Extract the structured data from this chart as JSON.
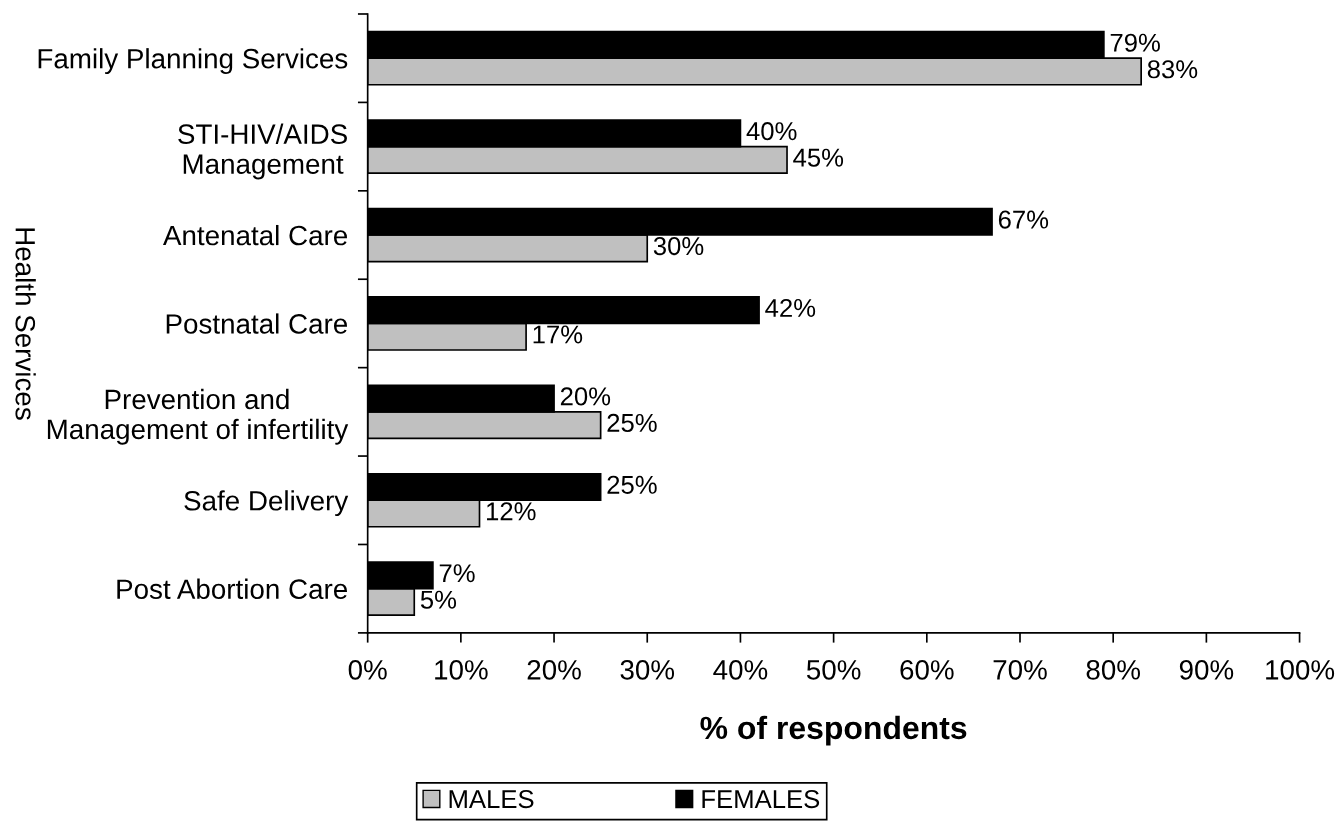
{
  "chart_data": {
    "type": "bar",
    "orientation": "horizontal",
    "xlabel": "% of respondents",
    "ylabel": "Health Services",
    "categories": [
      "Family Planning Services",
      "STI-HIV/AIDS\nManagement",
      "Antenatal Care",
      "Postnatal Care",
      "Prevention and\nManagement of infertility",
      "Safe Delivery",
      "Post Abortion Care"
    ],
    "series": [
      {
        "name": "MALES",
        "color": "#c0c0c0",
        "values": [
          83,
          45,
          30,
          17,
          25,
          12,
          5
        ],
        "value_labels": [
          "83%",
          "45%",
          "30%",
          "17%",
          "25%",
          "12%",
          "5%"
        ]
      },
      {
        "name": "FEMALES",
        "color": "#000000",
        "values": [
          79,
          40,
          67,
          42,
          20,
          25,
          7
        ],
        "value_labels": [
          "79%",
          "40%",
          "67%",
          "42%",
          "20%",
          "25%",
          "7%"
        ]
      }
    ],
    "xlim": [
      0,
      100
    ],
    "xticks": [
      {
        "value": 0,
        "label": "0%"
      },
      {
        "value": 10,
        "label": "10%"
      },
      {
        "value": 20,
        "label": "20%"
      },
      {
        "value": 30,
        "label": "30%"
      },
      {
        "value": 40,
        "label": "40%"
      },
      {
        "value": 50,
        "label": "50%"
      },
      {
        "value": 60,
        "label": "60%"
      },
      {
        "value": 70,
        "label": "70%"
      },
      {
        "value": 80,
        "label": "80%"
      },
      {
        "value": 90,
        "label": "90%"
      },
      {
        "value": 100,
        "label": "100%"
      }
    ],
    "legend": "bottom",
    "grid": false
  }
}
